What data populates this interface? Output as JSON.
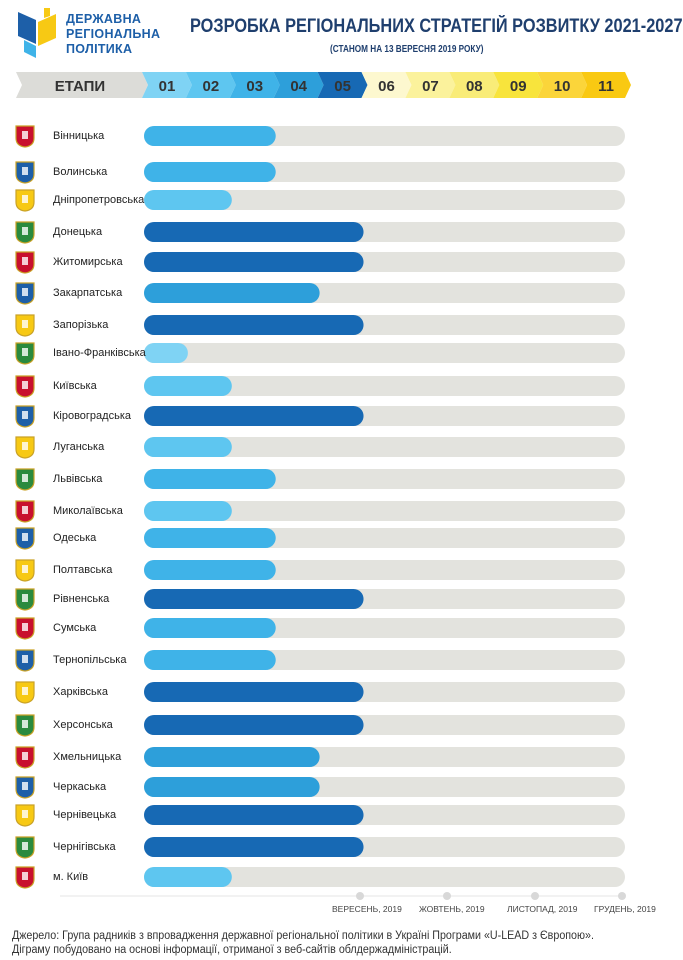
{
  "logo_text": [
    "ДЕРЖАВНА",
    "РЕГІОНАЛЬНА",
    "ПОЛІТИКА"
  ],
  "chart_data": {
    "type": "bar",
    "orientation": "horizontal",
    "title": "РОЗРОБКА РЕГІОНАЛЬНИХ СТРАТЕГІЙ РОЗВИТКУ 2021-2027",
    "subtitle": "(СТАНОМ НА 13 ВЕРЕСНЯ 2019 РОКУ)",
    "stage_header": "ЕТАПИ",
    "stages": [
      "01",
      "02",
      "03",
      "04",
      "05",
      "06",
      "07",
      "08",
      "09",
      "10",
      "11"
    ],
    "stage_colors": [
      "#7fd3f4",
      "#5ec6f0",
      "#3fb3e8",
      "#2d9fda",
      "#1769b4",
      "#fdf8cf",
      "#fbf29c",
      "#f9ec78",
      "#f8e43c",
      "#fbd53a",
      "#f9c912"
    ],
    "xlim": [
      0,
      11
    ],
    "categories": [
      "Вінницька",
      "Волинська",
      "Дніпропетровська",
      "Донецька",
      "Житомирська",
      "Закарпатська",
      "Запорізька",
      "Івано-Франківська",
      "Київська",
      "Кіровоградська",
      "Луганська",
      "Львівська",
      "Миколаївська",
      "Одеська",
      "Полтавська",
      "Рівненська",
      "Сумська",
      "Тернопільська",
      "Харківська",
      "Херсонська",
      "Хмельницька",
      "Черкаська",
      "Чернівецька",
      "Чернігівська",
      "м. Київ"
    ],
    "values": [
      3,
      3,
      2,
      5,
      5,
      4,
      5,
      1,
      2,
      5,
      2,
      3,
      2,
      3,
      3,
      5,
      3,
      3,
      5,
      5,
      4,
      4,
      5,
      5,
      2
    ],
    "timeline": [
      "ВЕРЕСЕНЬ, 2019",
      "ЖОВТЕНЬ, 2019",
      "ЛИСТОПАД, 2019",
      "ГРУДЕНЬ, 2019"
    ]
  },
  "footer": [
    "Джерело: Група радників з впровадження державної регіональної політики в Україні Програми «U-LEAD з Європою».",
    "Діграму побудовано на основі інформації, отриманої з веб-сайтів облдержадміністрацій."
  ]
}
